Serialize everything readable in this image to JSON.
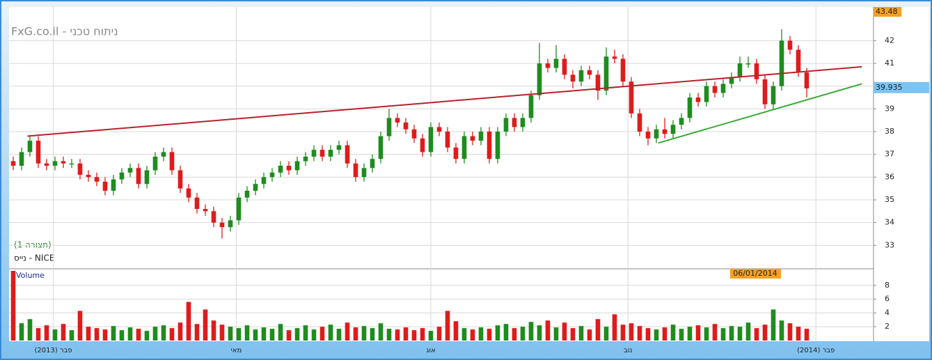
{
  "chart_data": [
    {
      "type": "candlestick",
      "title": "FxG.co.il - ניתוח טכני",
      "subtitle": "(תצורה 1)",
      "symbol": "נייס - NICE",
      "up_color": "#1e8c1e",
      "down_color": "#e01b1b",
      "open": [
        36.7,
        36.5,
        37.1,
        37.6,
        36.6,
        36.5,
        36.7,
        36.6,
        36.6,
        36.1,
        36.0,
        35.8,
        35.4,
        35.9,
        36.2,
        36.4,
        35.7,
        36.3,
        36.9,
        37.1,
        36.3,
        35.5,
        35.1,
        34.6,
        34.5,
        34.0,
        33.8,
        34.1,
        35.1,
        35.4,
        35.7,
        36.0,
        36.2,
        36.5,
        36.3,
        36.7,
        36.9,
        37.2,
        36.9,
        37.2,
        37.4,
        36.6,
        36.0,
        36.4,
        36.8,
        37.8,
        38.6,
        38.4,
        38.1,
        37.7,
        37.1,
        38.2,
        38.0,
        37.3,
        36.8,
        37.8,
        37.6,
        38.0,
        36.8,
        38.0,
        38.6,
        38.2,
        38.6,
        39.6,
        41.0,
        40.8,
        41.2,
        40.5,
        40.2,
        40.7,
        40.5,
        39.8,
        41.3,
        41.2,
        40.2,
        38.8,
        38.0,
        37.7,
        38.1,
        37.9,
        38.3,
        38.6,
        39.5,
        39.3,
        40.0,
        39.7,
        40.1,
        40.4,
        41.0,
        41.0,
        40.3,
        39.2,
        40.0,
        42.0,
        41.6,
        40.6
      ],
      "high": [
        36.9,
        37.3,
        37.8,
        37.8,
        36.8,
        36.9,
        36.9,
        36.8,
        36.8,
        36.3,
        36.2,
        36.0,
        36.1,
        36.4,
        36.6,
        36.6,
        36.5,
        37.1,
        37.3,
        37.3,
        36.5,
        35.7,
        35.3,
        34.8,
        34.7,
        34.2,
        34.3,
        35.3,
        35.6,
        35.9,
        36.2,
        36.4,
        36.7,
        36.7,
        36.9,
        37.1,
        37.4,
        37.4,
        37.4,
        37.6,
        37.6,
        36.8,
        36.6,
        37.0,
        38.0,
        39.0,
        38.8,
        38.6,
        38.3,
        37.9,
        38.4,
        38.4,
        38.2,
        37.5,
        38.0,
        38.0,
        38.2,
        38.2,
        38.2,
        38.8,
        38.8,
        38.8,
        39.8,
        41.9,
        41.2,
        41.8,
        41.4,
        40.7,
        40.9,
        40.9,
        40.7,
        41.7,
        41.6,
        41.4,
        40.4,
        39.0,
        38.2,
        38.3,
        38.6,
        38.5,
        38.8,
        39.7,
        39.7,
        40.2,
        40.2,
        40.3,
        40.6,
        41.3,
        41.3,
        41.2,
        40.5,
        40.2,
        42.5,
        42.2,
        41.8,
        40.8
      ],
      "low": [
        36.3,
        36.3,
        36.9,
        36.4,
        36.3,
        36.3,
        36.4,
        36.4,
        35.9,
        35.8,
        35.6,
        35.2,
        35.2,
        35.7,
        36.0,
        35.5,
        35.5,
        36.1,
        36.7,
        36.1,
        35.3,
        34.9,
        34.4,
        34.3,
        33.8,
        33.3,
        33.6,
        33.9,
        34.9,
        35.2,
        35.5,
        35.8,
        36.0,
        36.1,
        36.1,
        36.5,
        36.7,
        36.7,
        36.7,
        37.0,
        36.4,
        35.8,
        35.8,
        36.2,
        36.6,
        37.6,
        38.2,
        37.9,
        37.5,
        36.9,
        36.9,
        37.8,
        37.1,
        36.6,
        36.6,
        37.4,
        37.4,
        36.6,
        36.6,
        37.8,
        38.0,
        38.0,
        38.4,
        39.4,
        40.6,
        40.6,
        40.3,
        39.9,
        40.0,
        40.3,
        39.4,
        39.6,
        41.0,
        40.0,
        38.6,
        37.8,
        37.4,
        37.5,
        37.7,
        37.7,
        38.1,
        38.4,
        39.1,
        39.1,
        39.5,
        39.5,
        39.9,
        40.2,
        40.8,
        40.1,
        39.0,
        39.0,
        39.8,
        41.4,
        40.4,
        39.5
      ],
      "close": [
        36.5,
        37.1,
        37.6,
        36.6,
        36.5,
        36.7,
        36.6,
        36.6,
        36.1,
        36.0,
        35.8,
        35.4,
        35.9,
        36.2,
        36.4,
        35.7,
        36.3,
        36.9,
        37.1,
        36.3,
        35.5,
        35.1,
        34.6,
        34.5,
        34.0,
        33.8,
        34.1,
        35.1,
        35.4,
        35.7,
        36.0,
        36.2,
        36.5,
        36.3,
        36.7,
        36.9,
        37.2,
        36.9,
        37.2,
        37.4,
        36.6,
        36.0,
        36.4,
        36.8,
        37.8,
        38.6,
        38.4,
        38.1,
        37.7,
        37.1,
        38.2,
        38.0,
        37.3,
        36.8,
        37.8,
        37.6,
        38.0,
        36.8,
        38.0,
        38.6,
        38.2,
        38.6,
        39.6,
        41.0,
        40.8,
        41.2,
        40.5,
        40.2,
        40.7,
        40.5,
        39.8,
        41.3,
        41.2,
        40.2,
        38.8,
        38.0,
        37.7,
        38.1,
        37.9,
        38.3,
        38.6,
        39.5,
        39.3,
        40.0,
        39.7,
        40.1,
        40.4,
        41.0,
        41.0,
        40.3,
        39.2,
        40.0,
        42.0,
        41.6,
        40.6,
        39.9
      ],
      "xlim": [
        -0.5,
        103
      ],
      "xticks": [
        {
          "value": 4.8,
          "label": "(2013) פבר"
        },
        {
          "value": 26.7,
          "label": "מאי"
        },
        {
          "value": 50,
          "label": "אוג"
        },
        {
          "value": 73.6,
          "label": "נוב"
        },
        {
          "value": 96.1,
          "label": "(2014) פבר"
        }
      ],
      "ylim": [
        32,
        43.48
      ],
      "yticks": [
        33,
        34,
        35,
        36,
        37,
        38,
        39,
        40,
        41,
        42
      ],
      "grid": true,
      "lines": [
        {
          "color": "#b8222a",
          "x": [
            1.7,
            101.6
          ],
          "values": [
            37.8,
            40.85
          ]
        },
        {
          "color": "#3aaa35",
          "x": [
            77.25,
            101.6
          ],
          "values": [
            37.5,
            40.1
          ]
        }
      ],
      "top_label": "43.48",
      "last_price": 39.935,
      "last_label": "39.935",
      "date_label": "06/01/2014"
    },
    {
      "type": "bar",
      "title": "Volume",
      "values": [
        10.1,
        2.5,
        3.1,
        1.8,
        2.2,
        1.6,
        2.4,
        1.5,
        4.3,
        2.0,
        1.8,
        1.6,
        2.1,
        1.5,
        1.9,
        1.7,
        1.4,
        2.0,
        2.2,
        1.8,
        2.6,
        5.6,
        2.4,
        4.5,
        2.9,
        2.3,
        2.0,
        1.8,
        2.2,
        1.6,
        1.9,
        1.7,
        2.4,
        1.5,
        1.8,
        2.2,
        1.6,
        2.0,
        2.3,
        1.7,
        2.6,
        1.9,
        2.1,
        1.8,
        2.5,
        1.7,
        1.6,
        1.9,
        1.5,
        1.8,
        1.4,
        2.0,
        4.3,
        2.8,
        1.8,
        1.6,
        1.9,
        1.7,
        2.2,
        2.4,
        1.8,
        2.0,
        2.7,
        2.2,
        2.9,
        1.9,
        2.6,
        1.8,
        2.1,
        1.6,
        3.1,
        2.0,
        3.8,
        2.3,
        2.5,
        2.1,
        1.8,
        1.6,
        1.9,
        2.3,
        1.7,
        2.0,
        2.2,
        1.9,
        2.4,
        1.8,
        2.1,
        2.0,
        2.6,
        1.8,
        2.3,
        4.5,
        2.9,
        2.5,
        2.0,
        1.7
      ],
      "ylim": [
        0,
        10.1
      ],
      "yticks": [
        2,
        4,
        6,
        8
      ],
      "grid": true
    }
  ]
}
